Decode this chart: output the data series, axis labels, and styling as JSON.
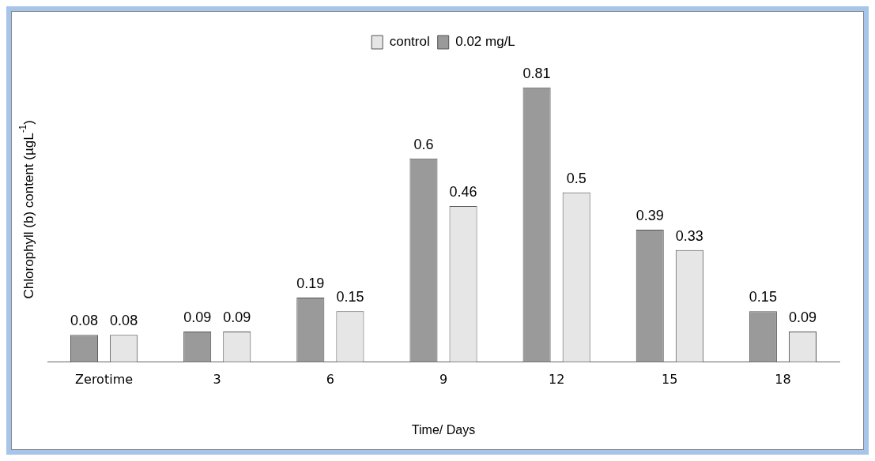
{
  "chart_data": {
    "type": "bar",
    "categories": [
      "Zerotime",
      "3",
      "6",
      "9",
      "12",
      "15",
      "18"
    ],
    "xlabel": "Time/ Days",
    "ylabel": "Chlorophyll (b) content (µgL$^{-1}$)",
    "legend": "top",
    "data_labels": true,
    "grid": false,
    "series": [
      {
        "name": "0.02 mg/L",
        "color": "#9a9a9a",
        "values": [
          0.08,
          0.09,
          0.19,
          0.6,
          0.81,
          0.39,
          0.15
        ]
      },
      {
        "name": "control",
        "color": "#e6e6e6",
        "values": [
          0.08,
          0.09,
          0.15,
          0.46,
          0.5,
          0.33,
          0.09
        ]
      }
    ]
  }
}
